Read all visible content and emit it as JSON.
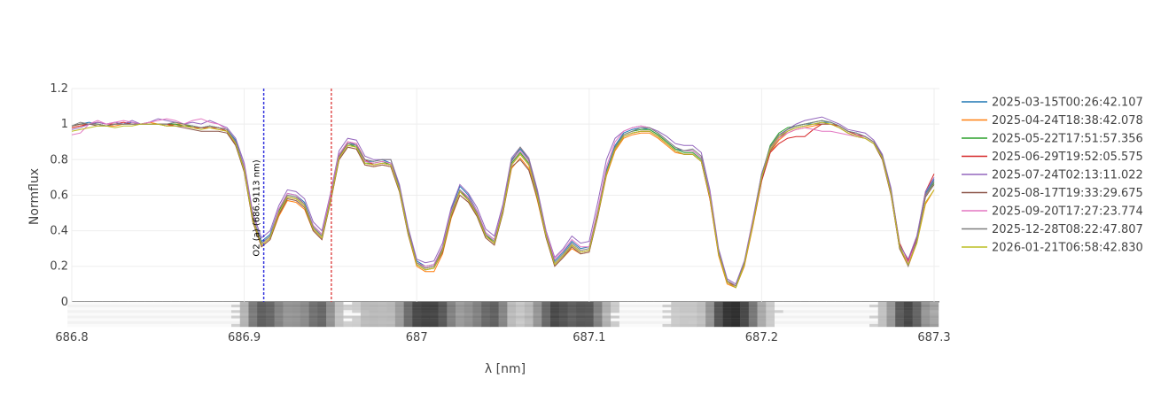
{
  "chart_data": {
    "type": "line",
    "x_label": "λ [nm]",
    "y_label": "Normflux",
    "xlim": [
      686.8,
      687.3
    ],
    "ylim": [
      -0.14,
      1.2
    ],
    "xticks": [
      686.8,
      686.9,
      687,
      687.1,
      687.2,
      687.3
    ],
    "yticks": [
      0,
      0.2,
      0.4,
      0.6,
      0.8,
      1,
      1.2
    ],
    "grid": true,
    "legend": "right",
    "annotations": [
      {
        "x": 686.9113,
        "color": "#3333dd",
        "label": "O2 (a) (686.9113 nm)"
      },
      {
        "x": 686.9505,
        "color": "#e05050"
      }
    ],
    "x": [
      686.8,
      686.805,
      686.81,
      686.815,
      686.82,
      686.825,
      686.83,
      686.835,
      686.84,
      686.845,
      686.85,
      686.855,
      686.86,
      686.865,
      686.87,
      686.875,
      686.88,
      686.885,
      686.89,
      686.895,
      686.9,
      686.905,
      686.91,
      686.915,
      686.92,
      686.925,
      686.93,
      686.935,
      686.94,
      686.945,
      686.95,
      686.955,
      686.96,
      686.965,
      686.97,
      686.975,
      686.98,
      686.985,
      686.99,
      686.995,
      687,
      687.005,
      687.01,
      687.015,
      687.02,
      687.025,
      687.03,
      687.035,
      687.04,
      687.045,
      687.05,
      687.055,
      687.06,
      687.065,
      687.07,
      687.075,
      687.08,
      687.085,
      687.09,
      687.095,
      687.1,
      687.105,
      687.11,
      687.115,
      687.12,
      687.125,
      687.13,
      687.135,
      687.14,
      687.145,
      687.15,
      687.155,
      687.16,
      687.165,
      687.17,
      687.175,
      687.18,
      687.185,
      687.19,
      687.195,
      687.2,
      687.205,
      687.21,
      687.215,
      687.22,
      687.225,
      687.23,
      687.235,
      687.24,
      687.245,
      687.25,
      687.255,
      687.26,
      687.265,
      687.27,
      687.275,
      687.28,
      687.285,
      687.29,
      687.295,
      687.3
    ],
    "series": [
      {
        "name": "2025-03-15T00:26:42.107",
        "color": "#1f77b4",
        "values": [
          0.99,
          1.0,
          1.01,
          1.0,
          0.99,
          1.0,
          1.0,
          1.01,
          1.0,
          1.0,
          1.0,
          1.0,
          1.0,
          0.99,
          0.99,
          0.98,
          0.99,
          0.98,
          0.97,
          0.91,
          0.76,
          0.48,
          0.34,
          0.38,
          0.52,
          0.61,
          0.6,
          0.56,
          0.43,
          0.38,
          0.59,
          0.83,
          0.9,
          0.88,
          0.79,
          0.79,
          0.8,
          0.78,
          0.65,
          0.41,
          0.23,
          0.2,
          0.21,
          0.31,
          0.52,
          0.65,
          0.6,
          0.51,
          0.39,
          0.35,
          0.53,
          0.8,
          0.86,
          0.8,
          0.61,
          0.39,
          0.23,
          0.28,
          0.34,
          0.3,
          0.31,
          0.51,
          0.74,
          0.88,
          0.95,
          0.97,
          0.98,
          0.97,
          0.94,
          0.9,
          0.86,
          0.85,
          0.85,
          0.81,
          0.61,
          0.29,
          0.12,
          0.09,
          0.22,
          0.46,
          0.72,
          0.87,
          0.94,
          0.97,
          0.99,
          1.0,
          1.0,
          1.01,
          1.01,
          0.99,
          0.96,
          0.95,
          0.93,
          0.9,
          0.82,
          0.62,
          0.31,
          0.21,
          0.36,
          0.61,
          0.69
        ]
      },
      {
        "name": "2025-04-24T18:38:42.078",
        "color": "#ff7f0e",
        "values": [
          0.98,
          0.99,
          1.0,
          1.0,
          0.99,
          0.99,
          1.0,
          1.0,
          1.0,
          1.01,
          1.0,
          0.99,
          1.0,
          1.0,
          0.98,
          0.98,
          0.98,
          0.97,
          0.96,
          0.89,
          0.73,
          0.45,
          0.31,
          0.35,
          0.48,
          0.57,
          0.56,
          0.52,
          0.4,
          0.35,
          0.56,
          0.8,
          0.87,
          0.86,
          0.77,
          0.76,
          0.77,
          0.76,
          0.62,
          0.38,
          0.2,
          0.17,
          0.17,
          0.27,
          0.47,
          0.6,
          0.56,
          0.48,
          0.36,
          0.32,
          0.5,
          0.75,
          0.81,
          0.75,
          0.57,
          0.36,
          0.2,
          0.25,
          0.3,
          0.27,
          0.28,
          0.48,
          0.71,
          0.85,
          0.92,
          0.94,
          0.95,
          0.95,
          0.92,
          0.88,
          0.84,
          0.83,
          0.83,
          0.79,
          0.58,
          0.26,
          0.1,
          0.08,
          0.2,
          0.43,
          0.68,
          0.84,
          0.91,
          0.95,
          0.97,
          0.98,
          0.99,
          1.0,
          1.0,
          0.98,
          0.95,
          0.93,
          0.92,
          0.89,
          0.8,
          0.6,
          0.3,
          0.2,
          0.33,
          0.55,
          0.63
        ]
      },
      {
        "name": "2025-05-22T17:51:57.356",
        "color": "#2ca02c",
        "values": [
          0.99,
          1.0,
          1.0,
          1.0,
          0.99,
          1.0,
          1.0,
          1.0,
          1.0,
          1.0,
          1.0,
          1.0,
          1.0,
          0.99,
          0.99,
          0.98,
          0.99,
          0.98,
          0.97,
          0.9,
          0.75,
          0.46,
          0.33,
          0.37,
          0.51,
          0.6,
          0.59,
          0.55,
          0.42,
          0.37,
          0.58,
          0.82,
          0.89,
          0.87,
          0.78,
          0.78,
          0.79,
          0.77,
          0.64,
          0.4,
          0.21,
          0.18,
          0.19,
          0.3,
          0.5,
          0.62,
          0.58,
          0.5,
          0.38,
          0.33,
          0.52,
          0.78,
          0.84,
          0.78,
          0.6,
          0.37,
          0.21,
          0.26,
          0.32,
          0.28,
          0.29,
          0.5,
          0.73,
          0.87,
          0.94,
          0.96,
          0.97,
          0.97,
          0.94,
          0.9,
          0.86,
          0.84,
          0.84,
          0.8,
          0.6,
          0.28,
          0.11,
          0.08,
          0.21,
          0.45,
          0.71,
          0.88,
          0.95,
          0.98,
          0.99,
          1.0,
          1.01,
          1.02,
          1.01,
          0.99,
          0.96,
          0.94,
          0.93,
          0.9,
          0.82,
          0.62,
          0.3,
          0.21,
          0.35,
          0.6,
          0.67
        ]
      },
      {
        "name": "2025-06-29T19:52:05.575",
        "color": "#d62728",
        "values": [
          0.98,
          0.99,
          1.0,
          1.01,
          1.0,
          1.0,
          1.01,
          1.0,
          1.0,
          1.0,
          1.0,
          1.0,
          0.99,
          0.99,
          0.98,
          0.98,
          0.98,
          0.98,
          0.96,
          0.88,
          0.74,
          0.46,
          0.32,
          0.36,
          0.5,
          0.59,
          0.58,
          0.54,
          0.41,
          0.36,
          0.57,
          0.81,
          0.9,
          0.89,
          0.8,
          0.77,
          0.78,
          0.77,
          0.63,
          0.4,
          0.22,
          0.19,
          0.2,
          0.29,
          0.49,
          0.62,
          0.57,
          0.49,
          0.37,
          0.33,
          0.51,
          0.77,
          0.83,
          0.77,
          0.59,
          0.37,
          0.21,
          0.26,
          0.32,
          0.28,
          0.29,
          0.49,
          0.72,
          0.86,
          0.93,
          0.95,
          0.96,
          0.96,
          0.93,
          0.89,
          0.85,
          0.83,
          0.83,
          0.79,
          0.58,
          0.27,
          0.11,
          0.09,
          0.21,
          0.44,
          0.68,
          0.84,
          0.89,
          0.92,
          0.93,
          0.93,
          0.97,
          1.0,
          1.0,
          0.99,
          0.96,
          0.94,
          0.93,
          0.9,
          0.82,
          0.63,
          0.33,
          0.23,
          0.36,
          0.62,
          0.72
        ]
      },
      {
        "name": "2025-07-24T02:13:11.022",
        "color": "#9467bd",
        "values": [
          0.97,
          0.98,
          1.0,
          1.01,
          1.0,
          1.01,
          1.0,
          1.02,
          1.0,
          1.01,
          1.03,
          1.02,
          1.01,
          1.0,
          1.01,
          1.0,
          1.02,
          1.0,
          0.98,
          0.92,
          0.78,
          0.5,
          0.36,
          0.4,
          0.54,
          0.63,
          0.62,
          0.58,
          0.45,
          0.4,
          0.61,
          0.85,
          0.92,
          0.91,
          0.82,
          0.8,
          0.8,
          0.8,
          0.66,
          0.42,
          0.24,
          0.22,
          0.23,
          0.33,
          0.53,
          0.66,
          0.61,
          0.53,
          0.41,
          0.37,
          0.55,
          0.81,
          0.87,
          0.81,
          0.63,
          0.4,
          0.25,
          0.3,
          0.37,
          0.33,
          0.34,
          0.56,
          0.8,
          0.92,
          0.96,
          0.98,
          0.99,
          0.98,
          0.96,
          0.93,
          0.89,
          0.88,
          0.88,
          0.84,
          0.63,
          0.3,
          0.13,
          0.1,
          0.23,
          0.47,
          0.72,
          0.87,
          0.93,
          0.97,
          1.0,
          1.02,
          1.03,
          1.04,
          1.02,
          1.0,
          0.97,
          0.96,
          0.95,
          0.91,
          0.83,
          0.64,
          0.32,
          0.24,
          0.37,
          0.62,
          0.7
        ]
      },
      {
        "name": "2025-08-17T19:33:29.675",
        "color": "#8c564b",
        "values": [
          0.99,
          1.0,
          1.0,
          0.99,
          0.99,
          1.0,
          1.0,
          1.0,
          1.0,
          1.0,
          1.0,
          0.99,
          0.99,
          0.98,
          0.97,
          0.96,
          0.96,
          0.96,
          0.95,
          0.88,
          0.73,
          0.45,
          0.31,
          0.35,
          0.49,
          0.58,
          0.57,
          0.53,
          0.4,
          0.35,
          0.56,
          0.8,
          0.87,
          0.86,
          0.77,
          0.76,
          0.77,
          0.76,
          0.62,
          0.38,
          0.21,
          0.18,
          0.19,
          0.28,
          0.48,
          0.6,
          0.56,
          0.48,
          0.36,
          0.32,
          0.5,
          0.76,
          0.8,
          0.74,
          0.58,
          0.36,
          0.2,
          0.25,
          0.31,
          0.27,
          0.28,
          0.48,
          0.72,
          0.86,
          0.93,
          0.95,
          0.96,
          0.96,
          0.93,
          0.89,
          0.85,
          0.83,
          0.83,
          0.79,
          0.59,
          0.27,
          0.11,
          0.08,
          0.21,
          0.44,
          0.69,
          0.85,
          0.92,
          0.96,
          0.98,
          0.99,
          1.0,
          1.0,
          1.0,
          0.98,
          0.95,
          0.93,
          0.92,
          0.89,
          0.8,
          0.6,
          0.3,
          0.21,
          0.34,
          0.59,
          0.66
        ]
      },
      {
        "name": "2025-09-20T17:27:23.774",
        "color": "#e377c2",
        "values": [
          0.94,
          0.95,
          1.0,
          1.02,
          1.0,
          1.01,
          1.02,
          1.01,
          1.0,
          1.01,
          1.02,
          1.03,
          1.02,
          1.0,
          1.02,
          1.03,
          1.01,
          1.0,
          0.97,
          0.9,
          0.76,
          0.48,
          0.33,
          0.37,
          0.52,
          0.61,
          0.6,
          0.55,
          0.43,
          0.38,
          0.6,
          0.83,
          0.9,
          0.89,
          0.79,
          0.78,
          0.79,
          0.78,
          0.64,
          0.4,
          0.22,
          0.2,
          0.21,
          0.31,
          0.51,
          0.63,
          0.59,
          0.51,
          0.39,
          0.35,
          0.53,
          0.79,
          0.85,
          0.79,
          0.61,
          0.39,
          0.24,
          0.29,
          0.35,
          0.31,
          0.31,
          0.52,
          0.76,
          0.9,
          0.96,
          0.98,
          0.99,
          0.98,
          0.95,
          0.91,
          0.87,
          0.85,
          0.85,
          0.81,
          0.61,
          0.28,
          0.12,
          0.09,
          0.22,
          0.46,
          0.7,
          0.86,
          0.92,
          0.95,
          0.97,
          0.98,
          0.97,
          0.96,
          0.96,
          0.95,
          0.94,
          0.93,
          0.93,
          0.9,
          0.81,
          0.61,
          0.31,
          0.22,
          0.35,
          0.6,
          0.68
        ]
      },
      {
        "name": "2025-12-28T08:22:47.807",
        "color": "#7f7f7f",
        "values": [
          0.99,
          1.01,
          1.0,
          1.0,
          0.99,
          1.0,
          1.0,
          1.0,
          1.0,
          1.0,
          1.0,
          1.0,
          1.01,
          1.0,
          0.99,
          0.98,
          0.99,
          0.98,
          0.97,
          0.9,
          0.75,
          0.47,
          0.33,
          0.37,
          0.5,
          0.6,
          0.59,
          0.55,
          0.42,
          0.37,
          0.58,
          0.82,
          0.89,
          0.88,
          0.8,
          0.79,
          0.8,
          0.8,
          0.64,
          0.4,
          0.22,
          0.19,
          0.2,
          0.3,
          0.5,
          0.63,
          0.58,
          0.5,
          0.38,
          0.34,
          0.52,
          0.79,
          0.87,
          0.8,
          0.61,
          0.38,
          0.22,
          0.27,
          0.33,
          0.29,
          0.3,
          0.5,
          0.73,
          0.87,
          0.94,
          0.96,
          0.98,
          0.98,
          0.95,
          0.91,
          0.87,
          0.85,
          0.86,
          0.82,
          0.6,
          0.28,
          0.12,
          0.09,
          0.22,
          0.45,
          0.71,
          0.87,
          0.94,
          0.97,
          0.99,
          1.0,
          1.01,
          1.02,
          1.01,
          0.99,
          0.96,
          0.95,
          0.93,
          0.9,
          0.82,
          0.62,
          0.32,
          0.2,
          0.35,
          0.6,
          0.68
        ]
      },
      {
        "name": "2026-01-21T06:58:42.830",
        "color": "#bcbd22",
        "values": [
          0.96,
          0.97,
          0.98,
          0.99,
          0.99,
          0.98,
          0.99,
          0.99,
          1.0,
          1.0,
          1.0,
          0.99,
          0.99,
          0.99,
          0.98,
          0.97,
          0.98,
          0.97,
          0.96,
          0.89,
          0.74,
          0.46,
          0.32,
          0.36,
          0.5,
          0.59,
          0.58,
          0.54,
          0.41,
          0.36,
          0.57,
          0.81,
          0.88,
          0.87,
          0.78,
          0.77,
          0.78,
          0.77,
          0.63,
          0.39,
          0.21,
          0.18,
          0.19,
          0.29,
          0.49,
          0.62,
          0.57,
          0.49,
          0.37,
          0.33,
          0.51,
          0.77,
          0.83,
          0.77,
          0.59,
          0.37,
          0.21,
          0.26,
          0.32,
          0.28,
          0.29,
          0.49,
          0.72,
          0.86,
          0.93,
          0.95,
          0.96,
          0.96,
          0.93,
          0.89,
          0.85,
          0.83,
          0.83,
          0.79,
          0.59,
          0.27,
          0.11,
          0.08,
          0.21,
          0.44,
          0.7,
          0.86,
          0.93,
          0.96,
          0.98,
          0.99,
          1.0,
          1.01,
          1.0,
          0.98,
          0.95,
          0.93,
          0.92,
          0.89,
          0.81,
          0.61,
          0.31,
          0.21,
          0.33,
          0.56,
          0.63
        ]
      }
    ]
  }
}
